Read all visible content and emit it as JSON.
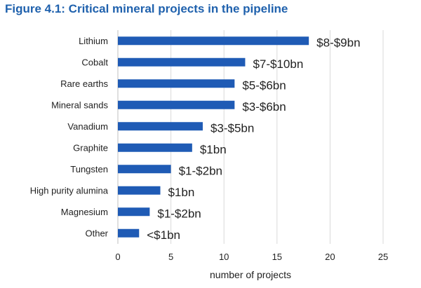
{
  "figure_title": "Figure 4.1: Critical mineral projects in the pipeline",
  "colors": {
    "bar": "#1f5bb5",
    "title": "#1f61ad",
    "grid": "#d9d9d9",
    "axis": "#bfbfbf"
  },
  "chart_data": {
    "type": "bar",
    "orientation": "horizontal",
    "categories": [
      "Lithium",
      "Cobalt",
      "Rare earths",
      "Mineral sands",
      "Vanadium",
      "Graphite",
      "Tungsten",
      "High purity alumina",
      "Magnesium",
      "Other"
    ],
    "values": [
      18,
      12,
      11,
      11,
      8,
      7,
      5,
      4,
      3,
      2
    ],
    "data_labels": [
      "$8-$9bn",
      "$7-$10bn",
      "$5-$6bn",
      "$3-$6bn",
      "$3-$5bn",
      "$1bn",
      "$1-$2bn",
      "$1bn",
      "$1-$2bn",
      "<$1bn"
    ],
    "xlabel": "number of projects",
    "xlim": [
      0,
      25
    ],
    "xticks": [
      "0",
      "5",
      "10",
      "15",
      "20",
      "25"
    ],
    "grid": true,
    "legend": "none"
  }
}
